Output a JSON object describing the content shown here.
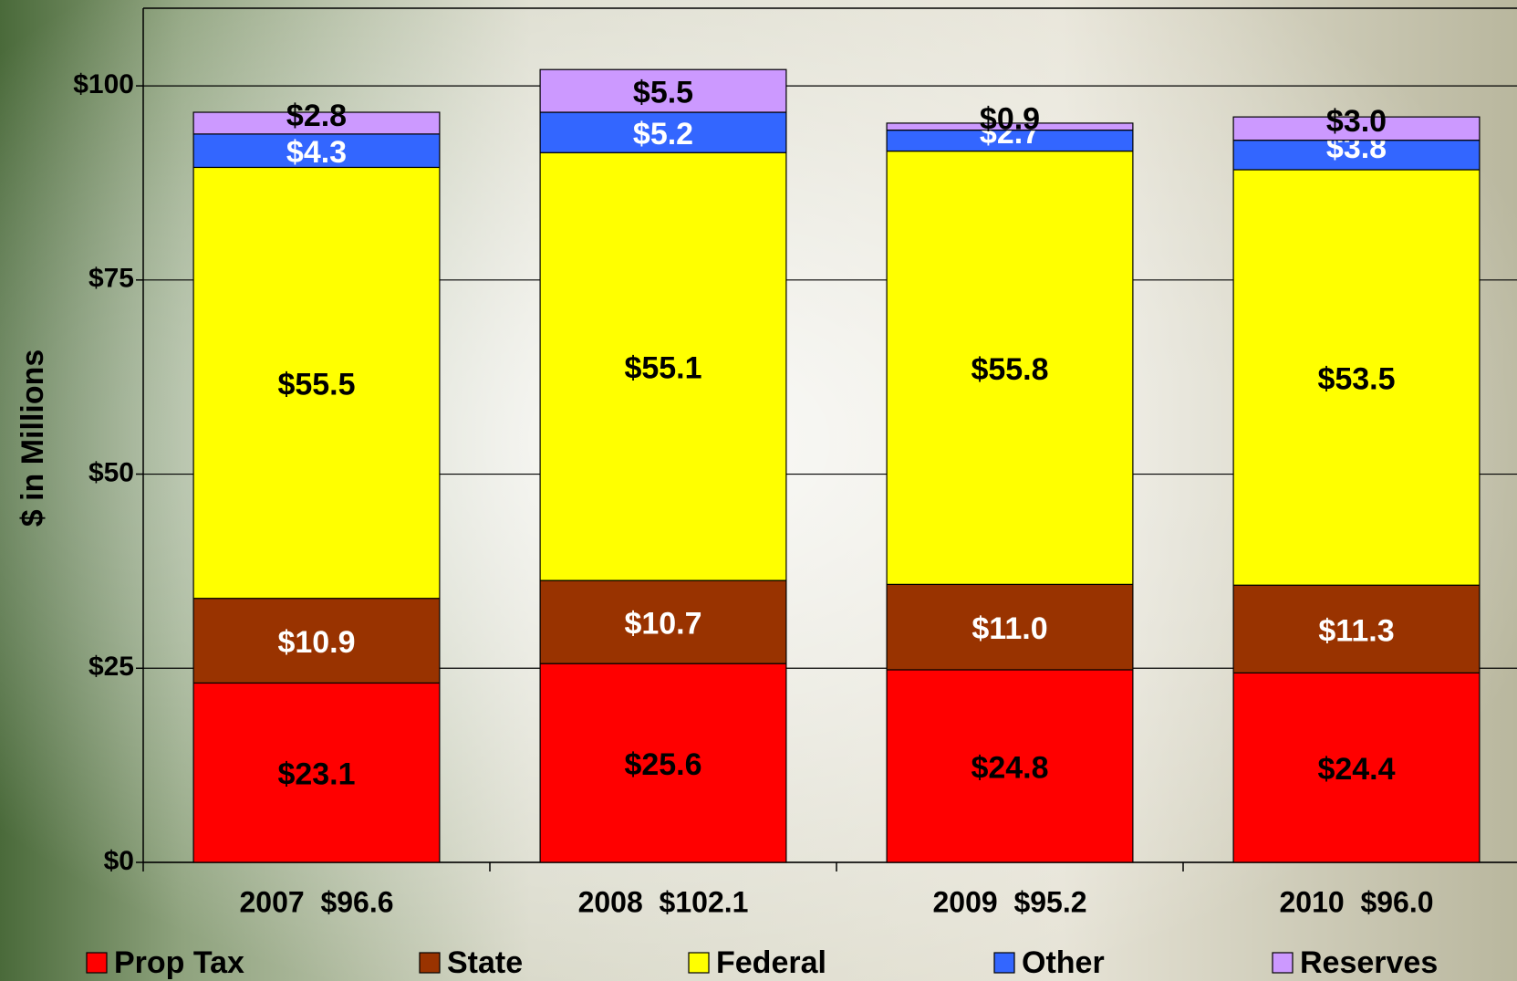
{
  "chart_data": {
    "type": "stacked_bar",
    "y_axis_label": "$ in Millions",
    "categories": [
      "2007  $96.6",
      "2008  $102.1",
      "2009  $95.2",
      "2010  $96.0"
    ],
    "series": [
      {
        "name": "Prop Tax",
        "color": "#ff0000",
        "values": [
          23.1,
          25.6,
          24.8,
          24.4
        ],
        "value_labels": [
          "$23.1",
          "$25.6",
          "$24.8",
          "$24.4"
        ]
      },
      {
        "name": "State",
        "color": "#993300",
        "values": [
          10.9,
          10.7,
          11.0,
          11.3
        ],
        "value_labels": [
          "$10.9",
          "$10.7",
          "$11.0",
          "$11.3"
        ]
      },
      {
        "name": "Federal",
        "color": "#ffff00",
        "values": [
          55.5,
          55.1,
          55.8,
          53.5
        ],
        "value_labels": [
          "$55.5",
          "$55.1",
          "$55.8",
          "$53.5"
        ]
      },
      {
        "name": "Other",
        "color": "#3366ff",
        "values": [
          4.3,
          5.2,
          2.7,
          3.8
        ],
        "value_labels": [
          "$4.3",
          "$5.2",
          "$2.7",
          "$3.8"
        ]
      },
      {
        "name": "Reserves",
        "color": "#cc99ff",
        "values": [
          2.8,
          5.5,
          0.9,
          3.0
        ],
        "value_labels": [
          "$2.8",
          "$5.5",
          "$0.9",
          "$3.0"
        ]
      }
    ],
    "ylim": [
      0,
      110
    ],
    "yticks": [
      {
        "value": 0,
        "label": "$0"
      },
      {
        "value": 25,
        "label": "$25"
      },
      {
        "value": 50,
        "label": "$50"
      },
      {
        "value": 75,
        "label": "$75"
      },
      {
        "value": 100,
        "label": "$100"
      }
    ],
    "grid": true,
    "legend": "bottom"
  }
}
